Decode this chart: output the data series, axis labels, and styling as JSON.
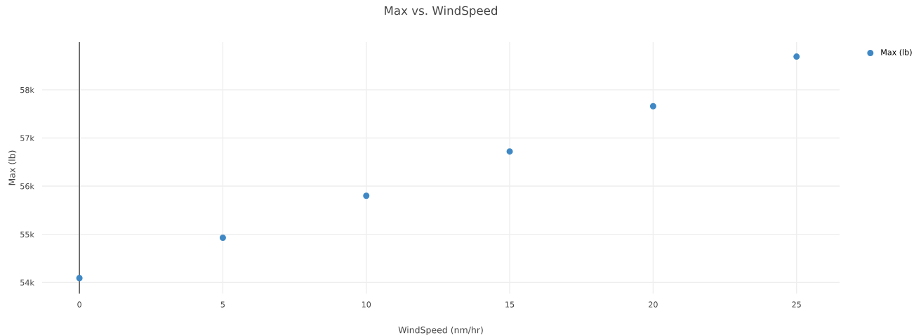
{
  "chart_data": {
    "type": "scatter",
    "title": "Max vs. WindSpeed",
    "xlabel": "WindSpeed (nm/hr)",
    "ylabel": "Max (lb)",
    "x": [
      0,
      5,
      10,
      15,
      20,
      25
    ],
    "series": [
      {
        "name": "Max (lb)",
        "color": "#3f88c5",
        "values": [
          54090,
          54930,
          55800,
          56720,
          57660,
          58690
        ]
      }
    ],
    "xlim": [
      -1.3,
      26.5
    ],
    "xticks": [
      0,
      5,
      10,
      15,
      20,
      25
    ],
    "ylim": [
      53770,
      58990
    ],
    "yticks": [
      {
        "value": 54000,
        "label": "54k"
      },
      {
        "value": 55000,
        "label": "55k"
      },
      {
        "value": 56000,
        "label": "56k"
      },
      {
        "value": 57000,
        "label": "57k"
      },
      {
        "value": 58000,
        "label": "58k"
      }
    ],
    "ref_lines": [
      {
        "axis": "x",
        "value": 0,
        "color": "#444444"
      }
    ],
    "grid": true,
    "legend": "top right",
    "marker": "circle"
  }
}
